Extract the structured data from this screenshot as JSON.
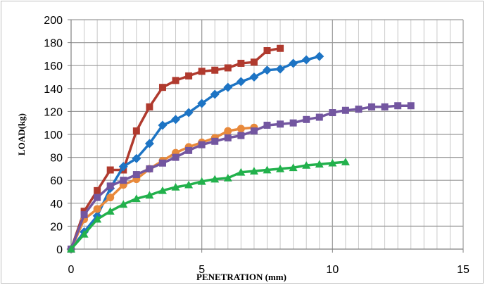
{
  "chart_data": {
    "type": "line",
    "title": "",
    "xlabel": "PENETRATION  (mm)",
    "ylabel": "LOAD(kg)",
    "xlim": [
      0,
      15
    ],
    "ylim": [
      0,
      200
    ],
    "x_ticks": [
      0,
      5,
      10,
      15
    ],
    "y_ticks": [
      0,
      20,
      40,
      60,
      80,
      100,
      120,
      140,
      160,
      180,
      200
    ],
    "x_minor_step": 0.5,
    "grid": true,
    "legend": "none",
    "series": [
      {
        "color": "#b03a2e",
        "marker": "square",
        "x": [
          0,
          0.5,
          1,
          1.5,
          2,
          2.5,
          3,
          3.5,
          4,
          4.5,
          5,
          5.5,
          6,
          6.5,
          7,
          7.5,
          8
        ],
        "y": [
          0,
          33,
          51,
          69,
          69,
          103,
          124,
          141,
          147,
          151,
          155,
          156,
          158,
          162,
          163,
          173,
          175
        ]
      },
      {
        "color": "#1d74c4",
        "marker": "diamond",
        "x": [
          0,
          0.5,
          1,
          1.5,
          2,
          2.5,
          3,
          3.5,
          4,
          4.5,
          5,
          5.5,
          6,
          6.5,
          7,
          7.5,
          8,
          8.5,
          9,
          9.5
        ],
        "y": [
          0,
          15,
          29,
          53,
          72,
          79,
          92,
          108,
          113,
          119,
          127,
          135,
          141,
          146,
          150,
          156,
          157,
          162,
          165,
          168
        ]
      },
      {
        "color": "#e8893b",
        "marker": "circle",
        "x": [
          0,
          0.5,
          1,
          1.5,
          2,
          2.5,
          3,
          3.5,
          4,
          4.5,
          5,
          5.5,
          6,
          6.5,
          7
        ],
        "y": [
          0,
          26,
          35,
          45,
          56,
          61,
          70,
          77,
          84,
          89,
          93,
          97,
          103,
          105,
          106
        ]
      },
      {
        "color": "#7356a0",
        "marker": "square",
        "x": [
          0,
          0.5,
          1,
          1.5,
          2,
          2.5,
          3,
          3.5,
          4,
          4.5,
          5,
          5.5,
          6,
          6.5,
          7,
          7.5,
          8,
          8.5,
          9,
          9.5,
          10,
          10.5,
          11,
          11.5,
          12,
          12.5,
          13
        ],
        "y": [
          0,
          30,
          45,
          55,
          60,
          65,
          70,
          75,
          80,
          86,
          91,
          94,
          97,
          99,
          103,
          108,
          109,
          110,
          113,
          115,
          119,
          121,
          122,
          124,
          124,
          125,
          125
        ]
      },
      {
        "color": "#22b14c",
        "marker": "triangle",
        "x": [
          0,
          0.5,
          1,
          1.5,
          2,
          2.5,
          3,
          3.5,
          4,
          4.5,
          5,
          5.5,
          6,
          6.5,
          7,
          7.5,
          8,
          8.5,
          9,
          9.5,
          10,
          10.5
        ],
        "y": [
          0,
          13,
          26,
          33,
          39,
          44,
          47,
          51,
          54,
          56,
          59,
          61,
          62,
          67,
          68,
          69,
          70,
          71,
          73,
          74,
          75,
          76
        ]
      }
    ]
  }
}
